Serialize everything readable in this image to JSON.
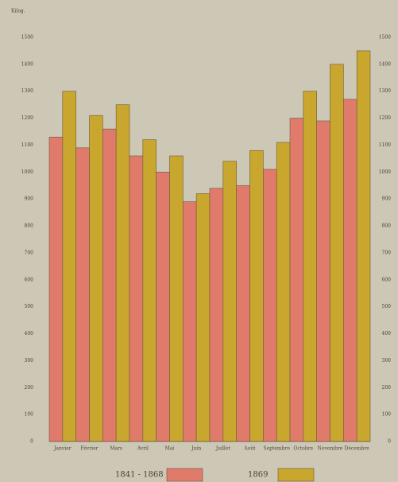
{
  "chart_data": {
    "type": "bar",
    "y_label": "Kilog.",
    "categories": [
      "Janvier",
      "Février",
      "Mars",
      "Avril",
      "Mai",
      "Juin",
      "Juillet",
      "Août",
      "Septembre",
      "Octobre",
      "Novembre",
      "Décembre"
    ],
    "series": [
      {
        "name": "1841 - 1868",
        "color": "#e07b6b",
        "values": [
          1130,
          1090,
          1160,
          1060,
          1000,
          890,
          940,
          950,
          1010,
          1200,
          1190,
          1270
        ]
      },
      {
        "name": "1869",
        "color": "#c9a62e",
        "values": [
          1300,
          1210,
          1250,
          1120,
          1060,
          920,
          1040,
          1080,
          1110,
          1300,
          1400,
          1450
        ]
      }
    ],
    "ylim": [
      0,
      1500
    ],
    "yticks": [
      0,
      100,
      200,
      300,
      400,
      500,
      600,
      700,
      800,
      900,
      1000,
      1100,
      1200,
      1300,
      1400,
      1500
    ]
  }
}
